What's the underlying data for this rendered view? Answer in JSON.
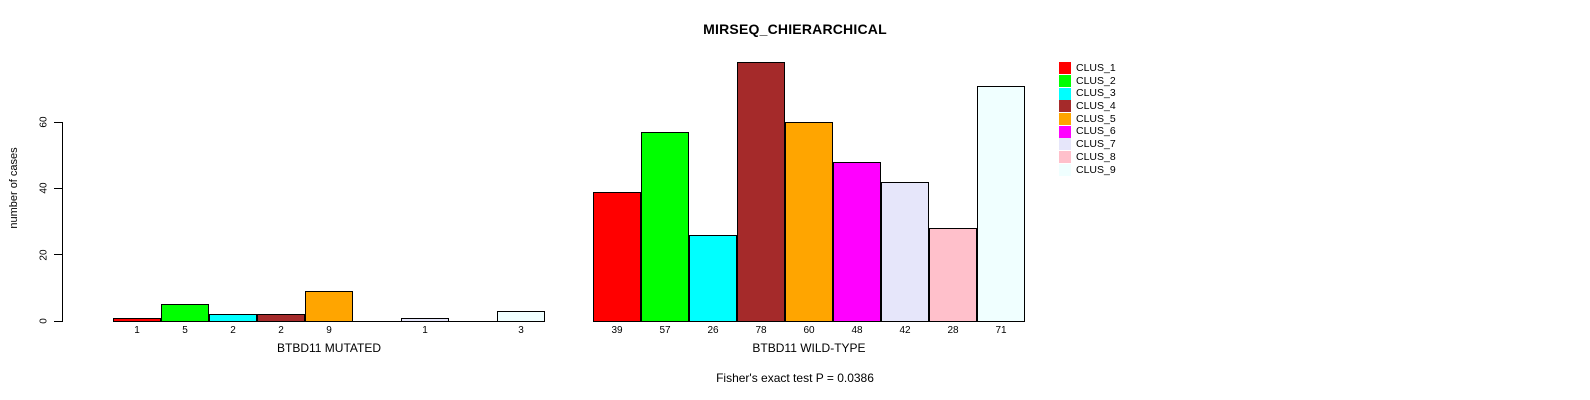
{
  "chart_data": {
    "type": "bar",
    "title": "MIRSEQ_CHIERARCHICAL",
    "ylabel": "number of cases",
    "ylim": [
      0,
      80
    ],
    "yticks": [
      0,
      20,
      40,
      60
    ],
    "grid": false,
    "legend_position": "right",
    "series_labels": [
      "CLUS_1",
      "CLUS_2",
      "CLUS_3",
      "CLUS_4",
      "CLUS_5",
      "CLUS_6",
      "CLUS_7",
      "CLUS_8",
      "CLUS_9"
    ],
    "series_colors": [
      "#ff0000",
      "#00ff00",
      "#00ffff",
      "#a52a2a",
      "#ffa500",
      "#ff00ff",
      "#e6e6fa",
      "#ffc0cb",
      "#f0ffff"
    ],
    "bar_outline_color": "#000000",
    "groups": [
      {
        "label": "BTBD11 MUTATED",
        "values": [
          1,
          5,
          2,
          2,
          9,
          0,
          1,
          0,
          3
        ]
      },
      {
        "label": "BTBD11 WILD-TYPE",
        "values": [
          39,
          57,
          26,
          78,
          60,
          48,
          42,
          28,
          71
        ]
      }
    ],
    "annotation": "Fisher's exact test P = 0.0386"
  }
}
